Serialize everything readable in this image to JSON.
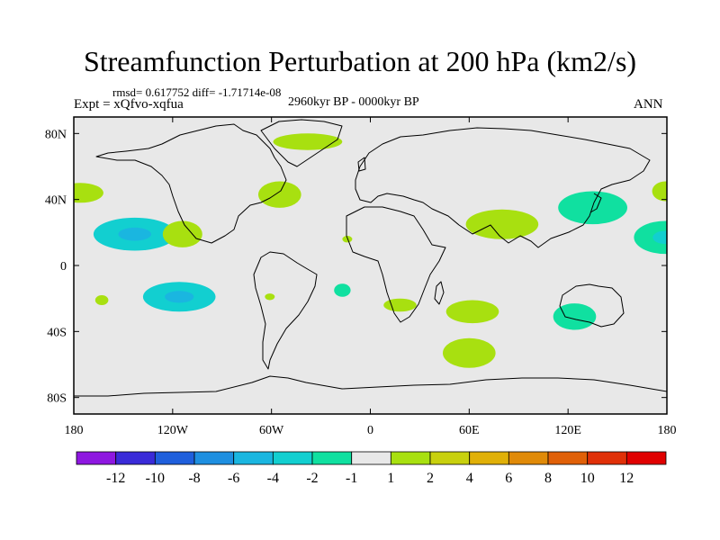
{
  "chart_data": {
    "type": "heatmap",
    "title": "Streamfunction Perturbation at 200 hPa (km2/s)",
    "stats": "rmsd= 0.617752 diff= -1.71714e-08",
    "expt": "Expt = xQfvo-xqfua",
    "period": "2960kyr BP - 0000kyr BP",
    "season": "ANN",
    "x_ticks": [
      {
        "lon": -180,
        "label": "180"
      },
      {
        "lon": -120,
        "label": "120W"
      },
      {
        "lon": -60,
        "label": "60W"
      },
      {
        "lon": 0,
        "label": "0"
      },
      {
        "lon": 60,
        "label": "60E"
      },
      {
        "lon": 120,
        "label": "120E"
      },
      {
        "lon": 180,
        "label": "180"
      }
    ],
    "y_ticks": [
      {
        "lat": 80,
        "label": "80N"
      },
      {
        "lat": 40,
        "label": "40N"
      },
      {
        "lat": 0,
        "label": "0"
      },
      {
        "lat": -40,
        "label": "40S"
      },
      {
        "lat": -80,
        "label": "80S"
      }
    ],
    "xlim": [
      -180,
      180
    ],
    "ylim": [
      -90,
      90
    ],
    "colorbar": {
      "labels": [
        "-12",
        "-10",
        "-8",
        "-6",
        "-4",
        "-2",
        "-1",
        "1",
        "2",
        "4",
        "6",
        "8",
        "10",
        "12"
      ],
      "colors": [
        "#8e17e0",
        "#3a2bd8",
        "#1f5fdc",
        "#1e8fe0",
        "#1ab6e0",
        "#12cfd0",
        "#10e0a0",
        "#e8e8e8",
        "#a8e010",
        "#c8d00e",
        "#e0b008",
        "#e08a08",
        "#e06008",
        "#e03008",
        "#e00000"
      ]
    },
    "background_color": "#e8e8e8",
    "anomalies": [
      {
        "lon": -143,
        "lat": 19,
        "rlon": 25,
        "rlat": 10,
        "level": -2,
        "core": -4
      },
      {
        "lon": -176,
        "lat": 44,
        "rlon": 14,
        "rlat": 6,
        "level": 1
      },
      {
        "lon": -114,
        "lat": 19,
        "rlon": 12,
        "rlat": 8,
        "level": 1
      },
      {
        "lon": -55,
        "lat": 43,
        "rlon": 13,
        "rlat": 8,
        "level": 1
      },
      {
        "lon": -38,
        "lat": 75,
        "rlon": 21,
        "rlat": 5,
        "level": 1
      },
      {
        "lon": -14,
        "lat": 16,
        "rlon": 3,
        "rlat": 2,
        "level": 1
      },
      {
        "lon": -116,
        "lat": -19,
        "rlon": 22,
        "rlat": 9,
        "level": -2,
        "core": -4
      },
      {
        "lon": -163,
        "lat": -21,
        "rlon": 4,
        "rlat": 3,
        "level": 1
      },
      {
        "lon": -61,
        "lat": -19,
        "rlon": 3,
        "rlat": 2,
        "level": 1
      },
      {
        "lon": -17,
        "lat": -15,
        "rlon": 5,
        "rlat": 4,
        "level": -1
      },
      {
        "lon": 18,
        "lat": -24,
        "rlon": 10,
        "rlat": 4,
        "level": 1
      },
      {
        "lon": 60,
        "lat": -53,
        "rlon": 16,
        "rlat": 9,
        "level": 1
      },
      {
        "lon": 62,
        "lat": -28,
        "rlon": 16,
        "rlat": 7,
        "level": 1
      },
      {
        "lon": 80,
        "lat": 25,
        "rlon": 22,
        "rlat": 9,
        "level": 1
      },
      {
        "lon": 135,
        "lat": 35,
        "rlon": 21,
        "rlat": 10,
        "level": -1
      },
      {
        "lon": 124,
        "lat": -31,
        "rlon": 13,
        "rlat": 8,
        "level": -1
      },
      {
        "lon": 179,
        "lat": 17,
        "rlon": 19,
        "rlat": 10,
        "level": -1,
        "core": -2
      },
      {
        "lon": 179,
        "lat": 45,
        "rlon": 8,
        "rlat": 6,
        "level": 1
      }
    ]
  }
}
